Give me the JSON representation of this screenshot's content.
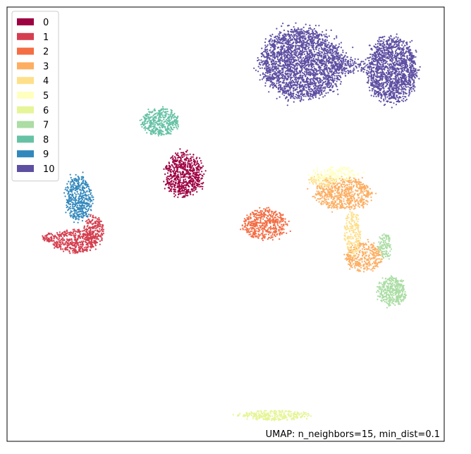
{
  "chart_data": {
    "type": "scatter",
    "title": "",
    "xlabel": "",
    "ylabel": "",
    "xlim": [
      0,
      100
    ],
    "ylim": [
      0,
      100
    ],
    "grid": false,
    "legend_position": "top-left",
    "annotation": "UMAP: n_neighbors=15, min_dist=0.1",
    "series": [
      {
        "name": "0",
        "color": "#9e0142",
        "clusters": [
          {
            "cx": 40.5,
            "cy": 61.5,
            "rx": 4.6,
            "ry": 5.3,
            "n": 650
          }
        ]
      },
      {
        "name": "1",
        "color": "#d53e4f",
        "clusters": [
          {
            "cx": 15.5,
            "cy": 46.0,
            "rx": 5.5,
            "ry": 2.8,
            "n": 420
          },
          {
            "cx": 20.0,
            "cy": 48.5,
            "rx": 2.5,
            "ry": 3.5,
            "n": 220
          },
          {
            "cx": 9.5,
            "cy": 47.0,
            "rx": 1.5,
            "ry": 1.2,
            "n": 60
          }
        ]
      },
      {
        "name": "2",
        "color": "#f46d43",
        "clusters": [
          {
            "cx": 59.0,
            "cy": 50.0,
            "rx": 5.3,
            "ry": 3.8,
            "n": 480
          }
        ]
      },
      {
        "name": "3",
        "color": "#fdae61",
        "clusters": [
          {
            "cx": 77.0,
            "cy": 57.0,
            "rx": 7.0,
            "ry": 3.8,
            "n": 650
          },
          {
            "cx": 81.5,
            "cy": 42.5,
            "rx": 4.5,
            "ry": 3.5,
            "n": 350
          }
        ]
      },
      {
        "name": "4",
        "color": "#fee08b",
        "clusters": [
          {
            "cx": 79.0,
            "cy": 48.0,
            "rx": 2.0,
            "ry": 5.5,
            "n": 200
          },
          {
            "cx": 72.0,
            "cy": 60.0,
            "rx": 3.5,
            "ry": 1.5,
            "n": 80
          }
        ]
      },
      {
        "name": "5",
        "color": "#ffffbf",
        "clusters": [
          {
            "cx": 75.0,
            "cy": 61.5,
            "rx": 6.0,
            "ry": 1.8,
            "n": 150
          }
        ]
      },
      {
        "name": "6",
        "color": "#e6f598",
        "clusters": [
          {
            "cx": 61.0,
            "cy": 6.0,
            "rx": 8.5,
            "ry": 1.2,
            "n": 300
          }
        ]
      },
      {
        "name": "7",
        "color": "#abdda4",
        "clusters": [
          {
            "cx": 88.0,
            "cy": 34.5,
            "rx": 3.5,
            "ry": 3.5,
            "n": 380
          },
          {
            "cx": 86.5,
            "cy": 45.0,
            "rx": 1.6,
            "ry": 3.0,
            "n": 120
          }
        ]
      },
      {
        "name": "8",
        "color": "#66c2a5",
        "clusters": [
          {
            "cx": 35.0,
            "cy": 73.5,
            "rx": 4.5,
            "ry": 3.3,
            "n": 420
          }
        ]
      },
      {
        "name": "9",
        "color": "#3288bd",
        "clusters": [
          {
            "cx": 16.5,
            "cy": 56.0,
            "rx": 3.3,
            "ry": 5.5,
            "n": 460
          }
        ]
      },
      {
        "name": "10",
        "color": "#5e4fa2",
        "clusters": [
          {
            "cx": 67.5,
            "cy": 87.0,
            "rx": 10.0,
            "ry": 8.5,
            "n": 2500
          },
          {
            "cx": 88.0,
            "cy": 85.5,
            "rx": 6.0,
            "ry": 8.0,
            "n": 1500
          },
          {
            "cx": 78.0,
            "cy": 86.5,
            "rx": 4.0,
            "ry": 2.0,
            "n": 120
          }
        ]
      }
    ]
  }
}
